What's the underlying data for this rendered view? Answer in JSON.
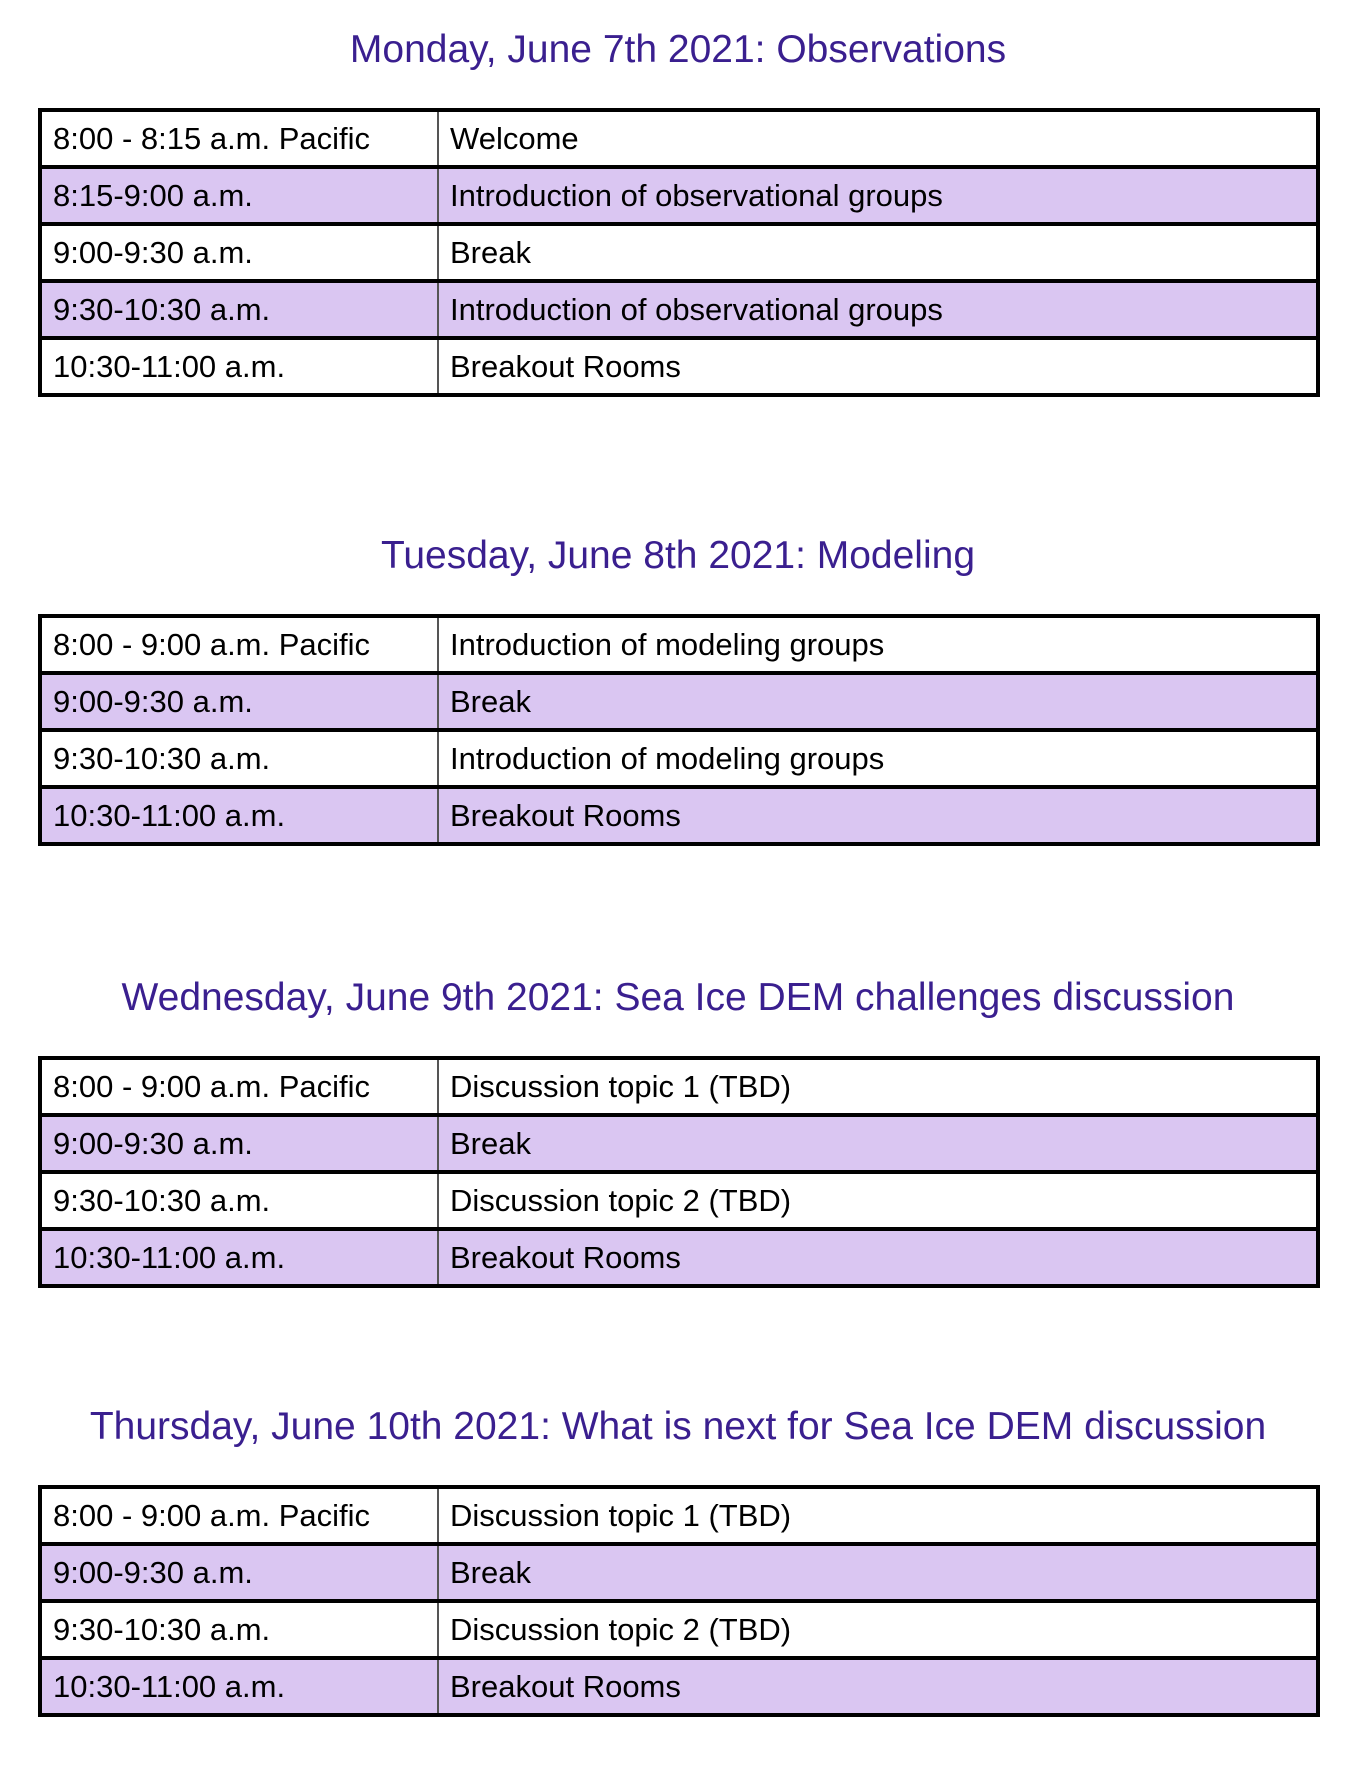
{
  "days": [
    {
      "title": "Monday, June 7th 2021: Observations",
      "rows": [
        {
          "time": "8:00 - 8:15 a.m. Pacific",
          "event": "Welcome"
        },
        {
          "time": "8:15-9:00 a.m.",
          "event": "Introduction of observational groups"
        },
        {
          "time": "9:00-9:30 a.m.",
          "event": "Break"
        },
        {
          "time": "9:30-10:30 a.m.",
          "event": "Introduction of observational groups"
        },
        {
          "time": "10:30-11:00 a.m.",
          "event": "Breakout Rooms"
        }
      ]
    },
    {
      "title": "Tuesday, June 8th 2021: Modeling",
      "rows": [
        {
          "time": "8:00 - 9:00 a.m. Pacific",
          "event": "Introduction of modeling groups"
        },
        {
          "time": "9:00-9:30 a.m.",
          "event": "Break"
        },
        {
          "time": "9:30-10:30 a.m.",
          "event": "Introduction of modeling groups"
        },
        {
          "time": "10:30-11:00 a.m.",
          "event": "Breakout Rooms"
        }
      ]
    },
    {
      "title": "Wednesday, June 9th 2021: Sea Ice DEM challenges discussion",
      "rows": [
        {
          "time": "8:00 - 9:00 a.m. Pacific",
          "event": "Discussion topic 1 (TBD)"
        },
        {
          "time": "9:00-9:30 a.m.",
          "event": "Break"
        },
        {
          "time": "9:30-10:30 a.m.",
          "event": "Discussion topic 2 (TBD)"
        },
        {
          "time": "10:30-11:00 a.m.",
          "event": "Breakout Rooms"
        }
      ]
    },
    {
      "title": "Thursday, June 10th 2021: What is next for Sea Ice DEM discussion",
      "rows": [
        {
          "time": "8:00 - 9:00 a.m. Pacific",
          "event": "Discussion topic 1 (TBD)"
        },
        {
          "time": "9:00-9:30 a.m.",
          "event": "Break"
        },
        {
          "time": "9:30-10:30 a.m.",
          "event": "Discussion topic 2 (TBD)"
        },
        {
          "time": "10:30-11:00 a.m.",
          "event": "Breakout Rooms"
        }
      ]
    }
  ],
  "colors": {
    "title_text": "#3a1f8f",
    "shaded_row": "#dac6f2",
    "plain_row": "#ffffff",
    "border": "#000000"
  }
}
